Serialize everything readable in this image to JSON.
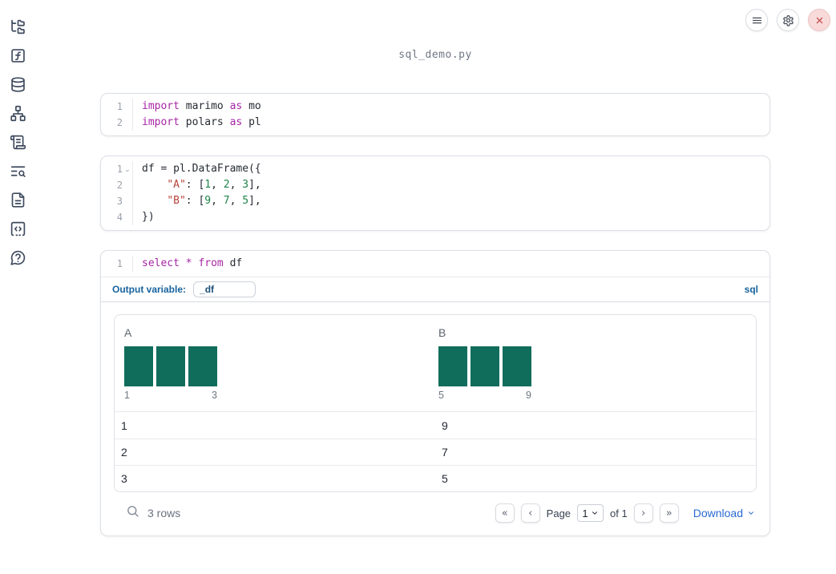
{
  "app": {
    "filename": "sql_demo.py"
  },
  "topbar": {
    "buttons": [
      {
        "name": "notebook-menu",
        "icon": "hamburger-menu-icon"
      },
      {
        "name": "settings",
        "icon": "gear-icon"
      },
      {
        "name": "shutdown",
        "icon": "close-icon"
      }
    ]
  },
  "sidebar": {
    "icons": [
      "file-tree-icon",
      "function-square-icon",
      "database-icon",
      "network-icon",
      "scroll-text-icon",
      "text-search-icon",
      "file-text-icon",
      "code-square-dashed-icon",
      "help-circle-icon"
    ]
  },
  "cells": [
    {
      "id": "imports",
      "lines": [
        {
          "num": "1",
          "fold": false,
          "tokens": [
            [
              "kw",
              "import"
            ],
            [
              "pl",
              " marimo "
            ],
            [
              "kw",
              "as"
            ],
            [
              "pl",
              " mo"
            ]
          ]
        },
        {
          "num": "2",
          "fold": false,
          "tokens": [
            [
              "kw",
              "import"
            ],
            [
              "pl",
              " polars "
            ],
            [
              "kw",
              "as"
            ],
            [
              "pl",
              " pl"
            ]
          ]
        }
      ]
    },
    {
      "id": "dataframe",
      "lines": [
        {
          "num": "1",
          "fold": true,
          "tokens": [
            [
              "pl",
              "df = pl.DataFrame({"
            ]
          ]
        },
        {
          "num": "2",
          "fold": false,
          "tokens": [
            [
              "pl",
              "    "
            ],
            [
              "str",
              "\"A\""
            ],
            [
              "pl",
              ": ["
            ],
            [
              "num",
              "1"
            ],
            [
              "pl",
              ", "
            ],
            [
              "num",
              "2"
            ],
            [
              "pl",
              ", "
            ],
            [
              "num",
              "3"
            ],
            [
              "pl",
              "],"
            ]
          ]
        },
        {
          "num": "3",
          "fold": false,
          "tokens": [
            [
              "pl",
              "    "
            ],
            [
              "str",
              "\"B\""
            ],
            [
              "pl",
              ": ["
            ],
            [
              "num",
              "9"
            ],
            [
              "pl",
              ", "
            ],
            [
              "num",
              "7"
            ],
            [
              "pl",
              ", "
            ],
            [
              "num",
              "5"
            ],
            [
              "pl",
              "],"
            ]
          ]
        },
        {
          "num": "4",
          "fold": false,
          "tokens": [
            [
              "pl",
              "})"
            ]
          ]
        }
      ]
    },
    {
      "id": "sql",
      "lines": [
        {
          "num": "1",
          "fold": false,
          "tokens": [
            [
              "kw",
              "select"
            ],
            [
              "pl",
              " "
            ],
            [
              "kw",
              "*"
            ],
            [
              "pl",
              " "
            ],
            [
              "kw",
              "from"
            ],
            [
              "pl",
              " df"
            ]
          ]
        }
      ]
    }
  ],
  "sql_cell": {
    "output_variable_label": "Output variable:",
    "output_variable_value": "_df",
    "language_badge": "sql"
  },
  "table": {
    "columns": [
      {
        "name": "A",
        "histogram": {
          "bars": [
            1,
            1,
            1
          ],
          "min_label": "1",
          "max_label": "3"
        }
      },
      {
        "name": "B",
        "histogram": {
          "bars": [
            1,
            1,
            1
          ],
          "min_label": "5",
          "max_label": "9"
        }
      }
    ],
    "rows": [
      [
        "1",
        "9"
      ],
      [
        "2",
        "7"
      ],
      [
        "3",
        "5"
      ]
    ],
    "row_count": "3 rows",
    "pagination": {
      "first_glyph": "«",
      "prev_glyph": "‹",
      "next_glyph": "›",
      "last_glyph": "»",
      "page_label": "Page",
      "page_value": "1",
      "of_label": "of 1"
    },
    "download_label": "Download"
  },
  "colors": {
    "accent_blue": "#17639e",
    "link_blue": "#2a6bd2",
    "histogram_teal": "#116d5b",
    "keyword_purple": "#a626a4",
    "string_red": "#b5443a",
    "number_green": "#1e8449",
    "danger_red": "#c4504e",
    "icon_slate": "#3e4a5e"
  }
}
